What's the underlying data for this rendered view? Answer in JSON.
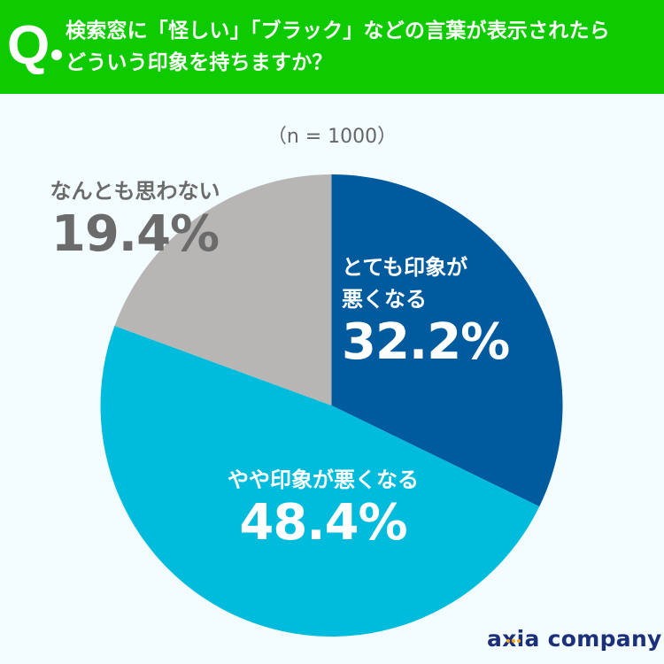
{
  "header": {
    "q_mark": "Q",
    "title_line1": "検索窓に「怪しい」「ブラック」などの言葉が表示されたら",
    "title_line2": "どういう印象を持ちますか？",
    "color": "#0ecb00"
  },
  "sample": "（n = 1000）",
  "logo": "axia company",
  "chart_data": {
    "type": "pie",
    "title": "検索窓に「怪しい」「ブラック」などの言葉が表示されたらどういう印象を持ちますか？",
    "subtitle": "（n = 1000）",
    "start_angle": "12 o'clock, clockwise",
    "categories": [
      "とても印象が悪くなる",
      "やや印象が悪くなる",
      "なんとも思わない"
    ],
    "values": [
      32.2,
      48.4,
      19.4
    ],
    "colors": [
      "#005b9e",
      "#00bcdc",
      "#b7b6b5"
    ],
    "labels": [
      {
        "category_line1": "とても印象が",
        "category_line2": "悪くなる",
        "percent": "32.2%"
      },
      {
        "category": "やや印象が悪くなる",
        "percent": "48.4%"
      },
      {
        "category": "なんとも思わない",
        "percent": "19.4%"
      }
    ],
    "legend": "none (inline labels)"
  }
}
